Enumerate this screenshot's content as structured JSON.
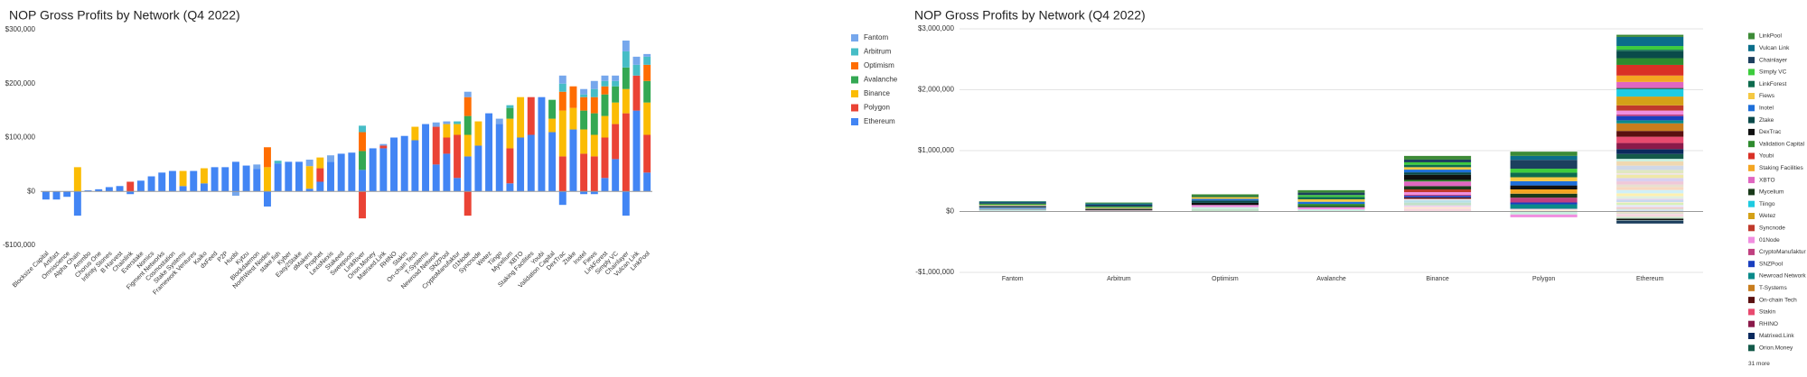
{
  "chart_data": [
    {
      "type": "bar",
      "stacked": true,
      "title": "NOP Gross Profits by Network (Q4 2022)",
      "categories": [
        "Blocksize Capital",
        "Artifact",
        "Omniscience",
        "Alpha Chain",
        "Ammbo",
        "Chorus One",
        "Infinity Stones",
        "B Harvest",
        "Chainlink",
        "Everstake",
        "Nomics",
        "Figment Networks",
        "Cosmostation",
        "Stake Systems",
        "Framework Ventures",
        "Kaiko",
        "dxFeed",
        "P2P",
        "Huobi",
        "Kytzu",
        "Blockdaemon",
        "NorthWest Nodes",
        "stake.fish",
        "Kyber",
        "Easy2Stake",
        "dMakers",
        "Prophet",
        "LexisNexis",
        "Stakeed",
        "Sweepsom",
        "LinkRiver",
        "Orion.Money",
        "Matrixed.Link",
        "RHINO",
        "Stakin",
        "On-chain Tech",
        "T-Systems",
        "Newroad Network",
        "SNZPool",
        "CryptoManufaktur",
        "01Node",
        "Syncnode",
        "Wetez",
        "Tiingo",
        "Mycelium",
        "XBTO",
        "Staking Facilities",
        "Youbi",
        "Validation Capital",
        "DexTrac",
        "Ztake",
        "Inotel",
        "Fiews",
        "LinkForest",
        "Simply VC",
        "Chainlayer",
        "Vulcan Link",
        "LinkPool"
      ],
      "series": [
        {
          "name": "Fantom",
          "color": "#76a7ec",
          "values": [
            0,
            0,
            0,
            0,
            0,
            0,
            0,
            0,
            0,
            0,
            0,
            0,
            0,
            0,
            0,
            0,
            0,
            0,
            -8000,
            0,
            8000,
            0,
            0,
            0,
            0,
            12000,
            0,
            12000,
            0,
            0,
            0,
            0,
            3000,
            0,
            0,
            0,
            0,
            8000,
            5000,
            0,
            10000,
            0,
            0,
            10000,
            0,
            0,
            0,
            0,
            0,
            15000,
            0,
            10000,
            15000,
            10000,
            10000,
            20000,
            15000,
            5000
          ]
        },
        {
          "name": "Arbitrum",
          "color": "#46bdc6",
          "values": [
            0,
            0,
            0,
            0,
            0,
            0,
            0,
            0,
            0,
            0,
            0,
            0,
            0,
            0,
            0,
            0,
            0,
            0,
            0,
            0,
            0,
            0,
            5000,
            0,
            0,
            0,
            0,
            0,
            0,
            0,
            12000,
            0,
            0,
            0,
            0,
            0,
            0,
            0,
            0,
            5000,
            0,
            0,
            0,
            0,
            5000,
            0,
            0,
            0,
            0,
            15000,
            0,
            5000,
            15000,
            10000,
            10000,
            30000,
            20000,
            15000
          ]
        },
        {
          "name": "Optimism",
          "color": "#ff6d01",
          "values": [
            0,
            0,
            0,
            0,
            0,
            0,
            0,
            0,
            0,
            0,
            0,
            0,
            0,
            0,
            0,
            0,
            0,
            0,
            0,
            0,
            0,
            37000,
            0,
            0,
            0,
            0,
            0,
            0,
            0,
            0,
            35000,
            0,
            0,
            0,
            0,
            0,
            0,
            0,
            0,
            0,
            35000,
            0,
            0,
            0,
            0,
            0,
            0,
            0,
            0,
            35000,
            40000,
            25000,
            30000,
            15000,
            0,
            0,
            0,
            30000
          ]
        },
        {
          "name": "Avalanche",
          "color": "#34a853",
          "values": [
            0,
            0,
            0,
            0,
            0,
            0,
            0,
            0,
            0,
            0,
            0,
            0,
            0,
            0,
            0,
            0,
            0,
            0,
            0,
            0,
            0,
            0,
            0,
            0,
            0,
            0,
            0,
            0,
            0,
            0,
            35000,
            0,
            0,
            0,
            0,
            0,
            0,
            0,
            0,
            0,
            35000,
            0,
            0,
            0,
            20000,
            0,
            0,
            0,
            35000,
            0,
            0,
            35000,
            40000,
            40000,
            30000,
            40000,
            0,
            40000
          ]
        },
        {
          "name": "Binance",
          "color": "#fbbc04",
          "values": [
            0,
            0,
            0,
            45000,
            0,
            0,
            0,
            0,
            0,
            0,
            0,
            0,
            0,
            28000,
            0,
            28000,
            0,
            0,
            0,
            0,
            0,
            45000,
            0,
            0,
            0,
            42000,
            20000,
            0,
            0,
            0,
            0,
            0,
            0,
            0,
            0,
            25000,
            0,
            0,
            25000,
            20000,
            40000,
            45000,
            0,
            0,
            55000,
            75000,
            0,
            0,
            25000,
            85000,
            40000,
            45000,
            40000,
            40000,
            40000,
            45000,
            0,
            60000
          ]
        },
        {
          "name": "Polygon",
          "color": "#ea4335",
          "values": [
            0,
            0,
            0,
            0,
            0,
            0,
            0,
            0,
            18000,
            0,
            0,
            0,
            0,
            0,
            0,
            0,
            0,
            0,
            0,
            0,
            0,
            0,
            0,
            0,
            0,
            0,
            25000,
            0,
            0,
            0,
            -50000,
            0,
            5000,
            0,
            0,
            0,
            0,
            70000,
            30000,
            80000,
            -45000,
            0,
            0,
            0,
            65000,
            0,
            70000,
            0,
            0,
            65000,
            0,
            70000,
            65000,
            75000,
            65000,
            145000,
            65000,
            70000
          ]
        },
        {
          "name": "Ethereum",
          "color": "#4285f4",
          "values": [
            -15000,
            -15000,
            -10000,
            -45000,
            2000,
            4000,
            8000,
            10000,
            -5000,
            20000,
            28000,
            35000,
            38000,
            10000,
            38000,
            15000,
            45000,
            45000,
            55000,
            48000,
            42000,
            -28000,
            52000,
            55000,
            55000,
            5000,
            18000,
            55000,
            70000,
            72000,
            40000,
            80000,
            80000,
            100000,
            103000,
            95000,
            125000,
            50000,
            70000,
            25000,
            65000,
            85000,
            145000,
            125000,
            15000,
            100000,
            105000,
            175000,
            110000,
            -25000,
            115000,
            -5000,
            -5000,
            25000,
            60000,
            -45000,
            150000,
            35000
          ]
        }
      ],
      "ylim": [
        -100000,
        300000
      ],
      "yticks": [
        {
          "value": -100000,
          "label": "-$100,000"
        },
        {
          "value": 0,
          "label": "$0"
        },
        {
          "value": 100000,
          "label": "$100,000"
        },
        {
          "value": 200000,
          "label": "$200,000"
        },
        {
          "value": 300000,
          "label": "$300,000"
        }
      ],
      "grid": false,
      "legend": "right"
    },
    {
      "type": "bar",
      "stacked": true,
      "title": "NOP Gross Profits by Network (Q4 2022)",
      "colors": [
        "#f2ede0",
        "#e8d9b0",
        "#cfe8f0",
        "#f7d6e0",
        "#d9f2d0",
        "#fbe3c2",
        "#e0d4f5",
        "#c9e3f7",
        "#f5f0c0",
        "#d0e8e0",
        "#f3c9c9",
        "#e6e6fa",
        "#d8f0b8",
        "#fde8d0",
        "#c8d8f0",
        "#f0d0f0",
        "#e0f0e0",
        "#fff0b0",
        "#d0f0f8",
        "#f8d8c0",
        "#e8e0d0",
        "#c0e0c8",
        "#f0c8d8",
        "#d8d0f0",
        "#f0e8a8",
        "#b8e0e8",
        "#f8e0e8",
        "#e0e8c0",
        "#d0d8e8",
        "#f0d8b0",
        "#c8f0e0",
        "#145a4a",
        "#0b2a5e",
        "#8b1a4a",
        "#e84a6f",
        "#5a1010",
        "#c87d1e",
        "#0a8a8a",
        "#1a3fbf",
        "#c04080",
        "#f08ee0",
        "#c0392b",
        "#d4a017",
        "#1ecbe1",
        "#1a3a1a",
        "#e066c0",
        "#f4a522",
        "#d93025",
        "#2e8b2e",
        "#111111",
        "#0a4a4a",
        "#1e6fd9",
        "#f5c842",
        "#0d6b4e",
        "#3dcc3d",
        "#1c3f5e",
        "#0b6e8a",
        "#3d8b37"
      ],
      "ylim": [
        -1000000,
        3000000
      ],
      "yticks": [
        {
          "value": -1000000,
          "label": "-$1,000,000"
        },
        {
          "value": 0,
          "label": "$0"
        },
        {
          "value": 1000000,
          "label": "$1,000,000"
        },
        {
          "value": 2000000,
          "label": "$2,000,000"
        },
        {
          "value": 3000000,
          "label": "$3,000,000"
        }
      ],
      "grid": true,
      "legend": "right",
      "legend_more": "31 more"
    }
  ]
}
